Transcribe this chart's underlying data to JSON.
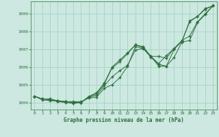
{
  "title": "Graphe pression niveau de la mer (hPa)",
  "background_color": "#cce8e0",
  "plot_bg_color": "#cce8e0",
  "grid_color": "#9ecfbf",
  "line_color": "#2d6e3e",
  "marker_color": "#2d6e3e",
  "xlim": [
    -0.5,
    23.5
  ],
  "ylim": [
    1003.6,
    1009.7
  ],
  "yticks": [
    1004,
    1005,
    1006,
    1007,
    1008,
    1009
  ],
  "xticks": [
    0,
    1,
    2,
    3,
    4,
    5,
    6,
    7,
    8,
    9,
    10,
    11,
    12,
    13,
    14,
    15,
    16,
    17,
    18,
    19,
    20,
    21,
    22,
    23
  ],
  "series": [
    [
      1004.35,
      1004.2,
      1004.2,
      1004.1,
      1004.05,
      1004.05,
      1004.05,
      1004.25,
      1004.3,
      1004.8,
      1005.0,
      1005.4,
      1006.05,
      1007.15,
      1007.05,
      1006.55,
      1006.15,
      1006.05,
      1007.0,
      1007.45,
      1008.55,
      1008.85,
      1009.25,
      1009.45
    ],
    [
      1004.35,
      1004.2,
      1004.2,
      1004.05,
      1004.05,
      1004.0,
      1004.0,
      1004.3,
      1004.4,
      1004.95,
      1005.45,
      1005.8,
      1006.1,
      1006.95,
      1007.05,
      1006.6,
      1006.6,
      1006.5,
      1007.05,
      1007.45,
      1008.6,
      1008.85,
      1009.3,
      1009.45
    ],
    [
      1004.35,
      1004.2,
      1004.15,
      1004.05,
      1004.0,
      1003.95,
      1004.0,
      1004.3,
      1004.5,
      1005.05,
      1005.95,
      1006.3,
      1006.75,
      1007.25,
      1007.1,
      1006.6,
      1006.05,
      1006.05,
      1006.55,
      1007.4,
      1007.5,
      1008.5,
      1008.95,
      1009.45
    ],
    [
      1004.35,
      1004.15,
      1004.1,
      1004.1,
      1004.05,
      1004.0,
      1004.0,
      1004.35,
      1004.55,
      1005.1,
      1006.0,
      1006.4,
      1006.8,
      1007.25,
      1007.15,
      1006.6,
      1006.2,
      1006.65,
      1007.05,
      1007.5,
      1007.75,
      1008.55,
      1009.0,
      1009.45
    ]
  ]
}
